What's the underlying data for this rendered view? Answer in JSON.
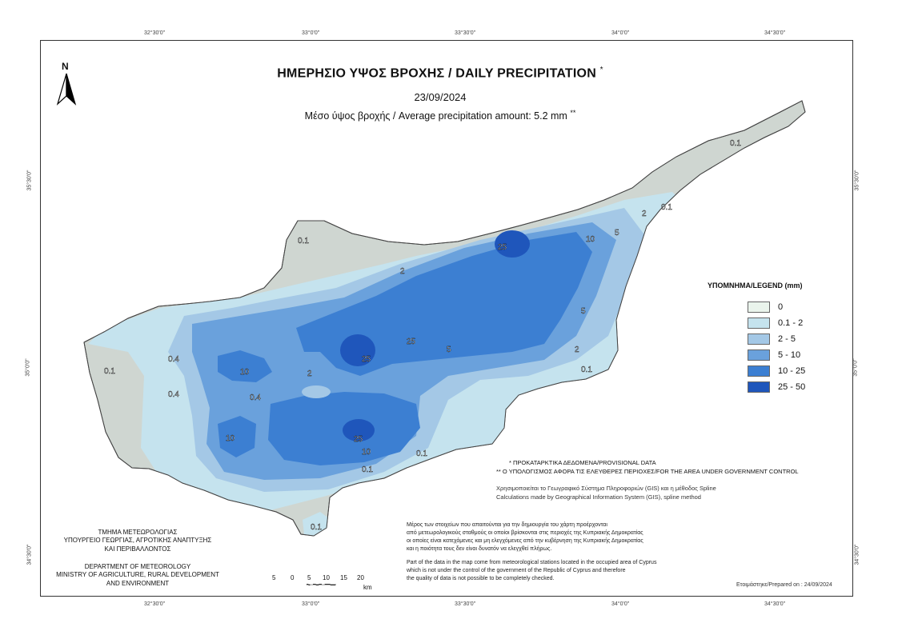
{
  "title": "ΗΜΕΡΗΣΙΟ ΥΨΟΣ ΒΡΟΧΗΣ / DAILY PRECIPITATION",
  "title_marker": "*",
  "date": "23/09/2024",
  "average_text": "Μέσο ύψος βροχής / Average precipitation amount: 5.2 mm",
  "average_marker": "**",
  "north_label": "N",
  "graticule_top": [
    "32°30'0\"",
    "33°0'0\"",
    "33°30'0\"",
    "34°0'0\"",
    "34°30'0\""
  ],
  "graticule_bottom": [
    "32°30'0\"",
    "33°0'0\"",
    "33°30'0\"",
    "34°0'0\"",
    "34°30'0\""
  ],
  "graticule_left": [
    "35°30'0\"",
    "35°0'0\"",
    "34°30'0\""
  ],
  "graticule_right": [
    "35°30'0\"",
    "35°0'0\"",
    "34°30'0\""
  ],
  "legend": {
    "title": "ΥΠΟΜΝΗΜΑ/LEGEND (mm)",
    "items": [
      {
        "label": "0",
        "color": "#eaf4ec"
      },
      {
        "label": "0.1 - 2",
        "color": "#c5e3ee"
      },
      {
        "label": "2 - 5",
        "color": "#a4c8e6"
      },
      {
        "label": "5 - 10",
        "color": "#6aa1dc"
      },
      {
        "label": "10 - 25",
        "color": "#3c7fd2"
      },
      {
        "label": "25 - 50",
        "color": "#1f56bb"
      }
    ]
  },
  "contour_labels": [
    "0.1",
    "0.1",
    "0.1",
    "0.1",
    "0.1",
    "0.1",
    "0.1",
    "2",
    "2",
    "2",
    "2",
    "5",
    "5",
    "5",
    "10",
    "10",
    "10",
    "10",
    "25",
    "25",
    "25",
    "25",
    "0.4",
    "0.4",
    "0.4",
    "0.1"
  ],
  "notes": {
    "provisional": "* ΠΡΟΚΑΤΑΡΚΤΙΚΑ ΔΕΔΟΜΕΝΑ/PROVISIONAL DATA",
    "area": "** Ο ΥΠΟΛΟΓΙΣΜΟΣ ΑΦΟΡΑ ΤΙΣ ΕΛΕΥΘΕΡΕΣ ΠΕΡΙΟΧΕΣ/FOR THE AREA UNDER GOVERNMENT CONTROL",
    "gis_gr": "Χρησιμοποιείται το Γεωγραφικό Σύστημα Πληροφοριών (GIS) και η μέθοδος Spline",
    "gis_en": "Calculations made by Geographical Information System (GIS), spline method"
  },
  "disclaimer": {
    "gr": [
      "Μέρος των στοιχείων που απαιτούνται για την δημιουργία του χάρτη προέρχονται",
      "από μετεωρολογικούς σταθμούς οι οποίοι βρίσκονται στις περιοχές της Κυπριακής Δημοκρατίας",
      "οι οποίες είναι κατεχόμενες και μη ελεγχόμενες από την κυβέρνηση της Κυπριακής Δημοκρατίας",
      "και η ποιότητα τους δεν είναι δυνατόν να ελεγχθεί πλήρως."
    ],
    "en": [
      "Part of the data in the map come from meteorological stations located in the occupied area of Cyprus",
      "which is not under the control of the government of the Republic of Cyprus and therefore",
      "the quality of data is not possible to be completely checked."
    ]
  },
  "department": {
    "gr": [
      "ΤΜΗΜΑ ΜΕΤΕΩΡΟΛΟΓΙΑΣ",
      "ΥΠΟΥΡΓΕΙΟ ΓΕΩΡΓΙΑΣ, ΑΓΡΟΤΙΚΗΣ ΑΝΑΠΤΥΞΗΣ",
      "ΚΑΙ ΠΕΡΙΒΑΛΛΟΝΤΟΣ"
    ],
    "en": [
      "DEPARTMENT OF METEOROLOGY",
      "MINISTRY OF AGRICULTURE, RURAL DEVELOPMENT",
      "AND ENVIRONMENT"
    ]
  },
  "scale": {
    "labels": [
      "5",
      "0",
      "5",
      "10",
      "15",
      "20"
    ],
    "unit": "km"
  },
  "prepared": "Ετοιμάστηκε/Prepared on : 24/09/2024"
}
